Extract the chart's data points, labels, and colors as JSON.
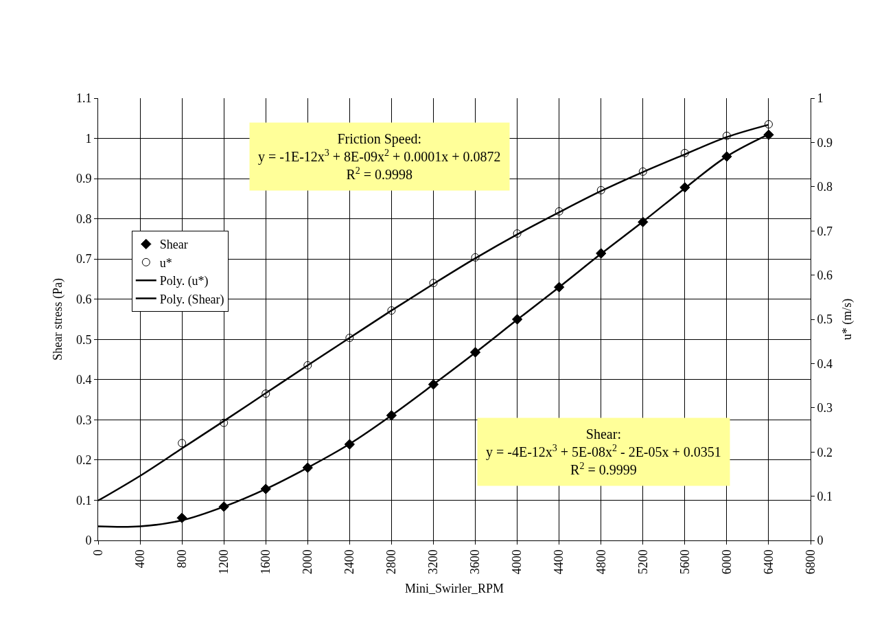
{
  "chart_data": {
    "type": "scatter",
    "xlabel": "Mini_Swirler_RPM",
    "ylabel": "Shear stress (Pa)",
    "y2label": "u* (m/s)",
    "xlim": [
      0,
      6800
    ],
    "xticks": [
      0,
      400,
      800,
      1200,
      1600,
      2000,
      2400,
      2800,
      3200,
      3600,
      4000,
      4400,
      4800,
      5200,
      5600,
      6000,
      6400,
      6800
    ],
    "ylim": [
      0,
      1.1
    ],
    "yticks": [
      0,
      0.1,
      0.2,
      0.3,
      0.4,
      0.5,
      0.6,
      0.7,
      0.8,
      0.9,
      1,
      1.1
    ],
    "y2lim": [
      0,
      1
    ],
    "y2ticks": [
      0,
      0.1,
      0.2,
      0.3,
      0.4,
      0.5,
      0.6,
      0.7,
      0.8,
      0.9,
      1
    ],
    "grid": true,
    "legend": "left",
    "x": [
      800,
      1200,
      1600,
      2000,
      2400,
      2800,
      3200,
      3600,
      4000,
      4400,
      4800,
      5200,
      5600,
      6000,
      6400
    ],
    "series": [
      {
        "name": "Shear",
        "color": "#000000",
        "marker": "diamond",
        "values": [
          0.056,
          0.084,
          0.128,
          0.181,
          0.239,
          0.311,
          0.388,
          0.468,
          0.55,
          0.63,
          0.714,
          0.792,
          0.878,
          0.955,
          1.009
        ]
      },
      {
        "name": "u*",
        "color": "#000000",
        "marker": "circle",
        "axis": "y2",
        "values": [
          0.22,
          0.266,
          0.332,
          0.396,
          0.458,
          0.52,
          0.582,
          0.64,
          0.694,
          0.744,
          0.792,
          0.834,
          0.876,
          0.915,
          0.941
        ]
      },
      {
        "name": "Poly. (u*)",
        "type": "line",
        "color": "#000000",
        "marker": "none",
        "axis": "y2",
        "x": [
          0,
          400,
          800,
          1200,
          1600,
          2000,
          2400,
          2800,
          3200,
          3600,
          4000,
          4400,
          4800,
          5200,
          5600,
          6000,
          6400
        ],
        "values": [
          0.09,
          0.146,
          0.208,
          0.27,
          0.333,
          0.396,
          0.458,
          0.52,
          0.58,
          0.638,
          0.692,
          0.742,
          0.79,
          0.833,
          0.873,
          0.912,
          0.94
        ]
      },
      {
        "name": "Poly. (Shear)",
        "type": "line",
        "color": "#000000",
        "marker": "none",
        "x": [
          0,
          400,
          800,
          1200,
          1600,
          2000,
          2400,
          2800,
          3200,
          3600,
          4000,
          4400,
          4800,
          5200,
          5600,
          6000,
          6400
        ],
        "values": [
          0.035,
          0.035,
          0.05,
          0.084,
          0.128,
          0.181,
          0.24,
          0.311,
          0.388,
          0.467,
          0.549,
          0.63,
          0.713,
          0.793,
          0.876,
          0.955,
          1.01
        ]
      }
    ],
    "annotations": [
      "Friction Speed:\ny = -1E-12x$^{3}$ + 8E-09x$^{2}$ + 0.0001x + 0.0872\nR$^{2}$ = 0.9998",
      "Shear:\ny = -4E-12x$^{3}$ + 5E-08x$^{2}$ - 2E-05x + 0.0351\nR$^{2}$ = 0.9999"
    ]
  }
}
